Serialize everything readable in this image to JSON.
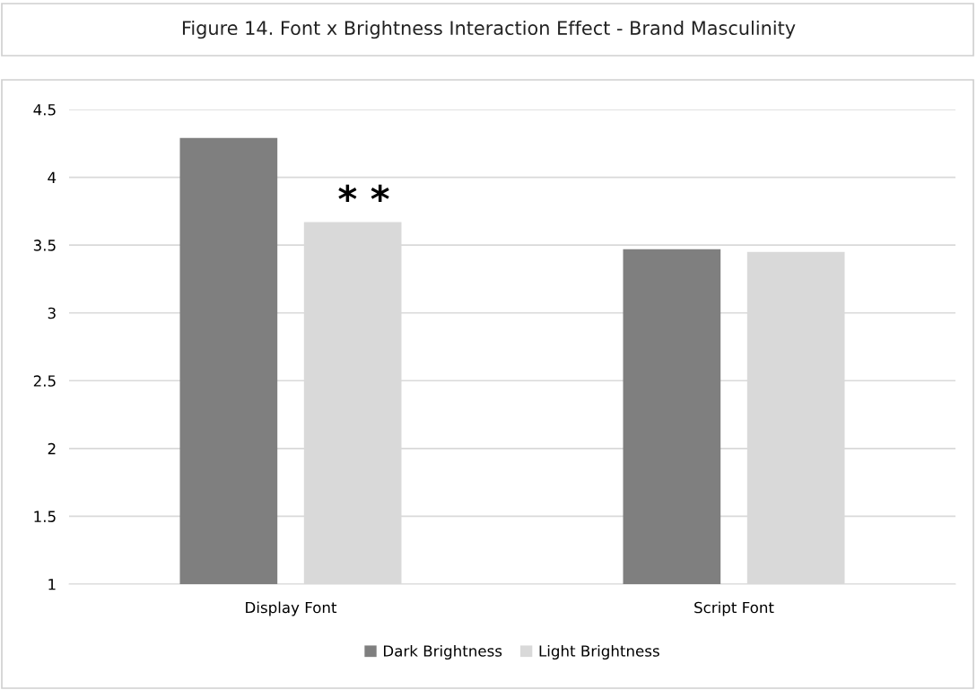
{
  "chart_data": {
    "type": "bar",
    "title": "Figure 14. Font x Brightness Interaction Effect - Brand Masculinity",
    "categories": [
      "Display Font",
      "Script Font"
    ],
    "series": [
      {
        "name": "Dark Brightness",
        "color": "#7f7f7f",
        "values": [
          4.29,
          3.47
        ]
      },
      {
        "name": "Light Brightness",
        "color": "#d9d9d9",
        "values": [
          3.67,
          3.45
        ]
      }
    ],
    "annotations": [
      "* *"
    ],
    "ylim": [
      1,
      4.5
    ],
    "yticks": [
      1,
      1.5,
      2,
      2.5,
      3,
      3.5,
      4,
      4.5
    ],
    "grid": "y",
    "legend": "bottom"
  }
}
